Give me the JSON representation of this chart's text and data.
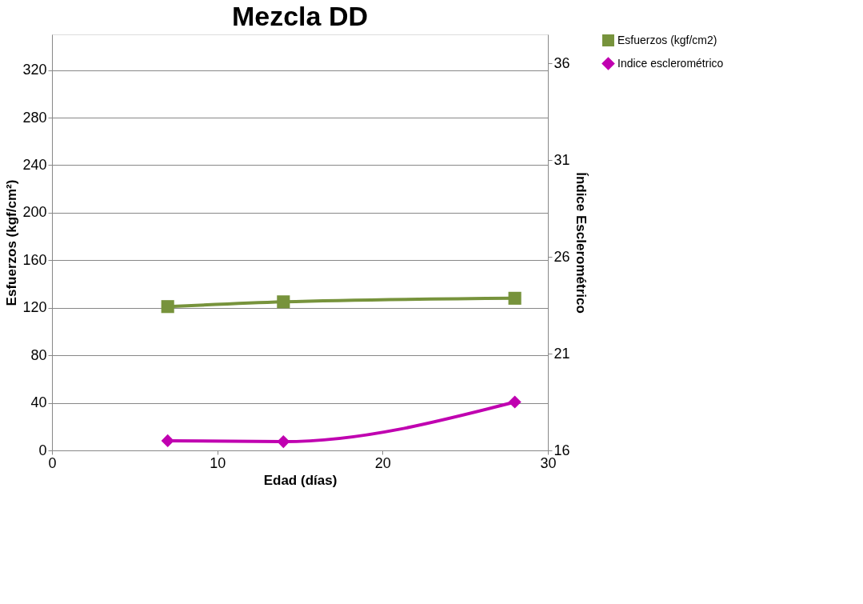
{
  "chart_data": {
    "type": "line",
    "title": "Mezcla DD",
    "xlabel": "Edad (días)",
    "ylabel": "Esfuerzos (kgf/cm²)",
    "y2label": "Índice Esclerométrico",
    "x": [
      7,
      14,
      28
    ],
    "series": [
      {
        "name": "Esfuerzos (kgf/cm2)",
        "color": "#77933c",
        "marker": "square",
        "values": [
          121,
          125,
          128
        ]
      },
      {
        "name": "Indice esclerométrico",
        "color": "#c000b0",
        "marker": "diamond",
        "axis": "y2",
        "values": [
          16.5,
          16.45,
          18.5
        ]
      }
    ],
    "xlim": [
      0,
      30
    ],
    "xticks": [
      0,
      10,
      20,
      30
    ],
    "ylim": [
      0,
      350
    ],
    "yticks": [
      0,
      40,
      80,
      120,
      160,
      200,
      240,
      280,
      320
    ],
    "y2lim": [
      16,
      37.5
    ],
    "y2ticks": [
      16,
      21,
      26,
      31,
      36
    ],
    "grid": "y",
    "legend": "right"
  }
}
